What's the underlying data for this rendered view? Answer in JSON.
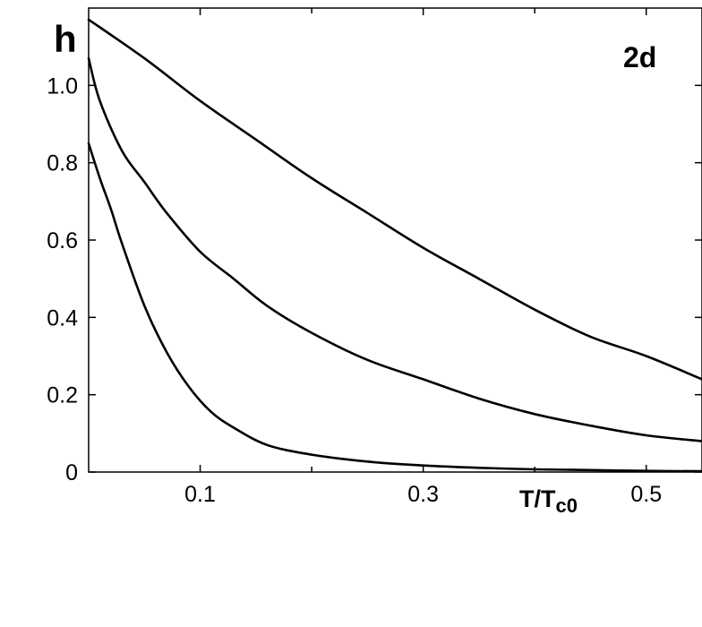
{
  "chart_data": {
    "type": "line",
    "panel_label": "2d",
    "ylabel": "h",
    "xlabel_main": "T/T",
    "xlabel_sub": "c0",
    "xlim": [
      0.0,
      0.55
    ],
    "ylim": [
      0,
      1.2
    ],
    "x_ticks": [
      {
        "value": 0.1,
        "label": "0.1"
      },
      {
        "value": 0.3,
        "label": "0.3"
      },
      {
        "value": 0.5,
        "label": "0.5"
      }
    ],
    "x_minor_ticks": [
      0.2,
      0.4
    ],
    "y_ticks": [
      {
        "value": 0,
        "label": "0"
      },
      {
        "value": 0.2,
        "label": "0.2"
      },
      {
        "value": 0.4,
        "label": "0.4"
      },
      {
        "value": 0.6,
        "label": "0.6"
      },
      {
        "value": 0.8,
        "label": "0.8"
      },
      {
        "value": 1.0,
        "label": "1.0"
      }
    ],
    "grid": false,
    "series": [
      {
        "x": [
          0.0,
          0.05,
          0.1,
          0.15,
          0.2,
          0.25,
          0.3,
          0.35,
          0.4,
          0.45,
          0.5,
          0.55
        ],
        "y": [
          1.17,
          1.07,
          0.96,
          0.86,
          0.76,
          0.67,
          0.58,
          0.5,
          0.42,
          0.35,
          0.3,
          0.24
        ]
      },
      {
        "x": [
          0.0,
          0.01,
          0.03,
          0.05,
          0.07,
          0.1,
          0.13,
          0.16,
          0.2,
          0.25,
          0.3,
          0.35,
          0.4,
          0.45,
          0.5,
          0.55
        ],
        "y": [
          1.07,
          0.96,
          0.83,
          0.75,
          0.67,
          0.57,
          0.5,
          0.43,
          0.36,
          0.29,
          0.24,
          0.19,
          0.15,
          0.12,
          0.095,
          0.08
        ]
      },
      {
        "x": [
          0.0,
          0.01,
          0.02,
          0.03,
          0.05,
          0.07,
          0.09,
          0.11,
          0.13,
          0.16,
          0.2,
          0.25,
          0.3,
          0.35,
          0.4,
          0.45,
          0.5,
          0.55
        ],
        "y": [
          0.85,
          0.76,
          0.68,
          0.59,
          0.43,
          0.31,
          0.22,
          0.155,
          0.115,
          0.07,
          0.045,
          0.027,
          0.017,
          0.011,
          0.007,
          0.005,
          0.003,
          0.002
        ]
      }
    ]
  }
}
